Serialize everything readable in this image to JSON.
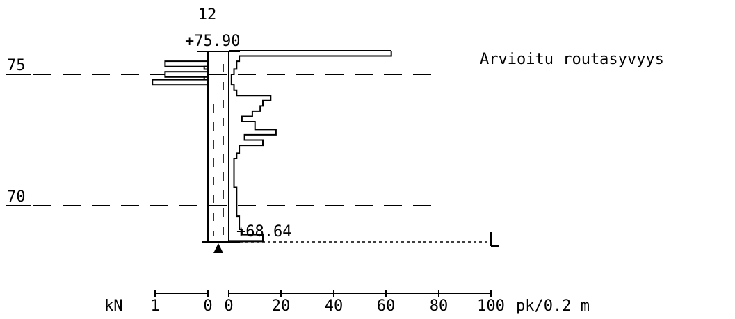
{
  "point_id": "12",
  "top_label": "+75.90",
  "bottom_label": "+68.64",
  "frost_label": "Arvioitu routasyvyys",
  "axis": {
    "kn_label": "kN",
    "kn_ticks": [
      "1",
      "0"
    ],
    "pk_ticks": [
      "0",
      "20",
      "40",
      "60",
      "80",
      "100"
    ],
    "pk_unit": "pk/0.2 m"
  },
  "elevation_lines": [
    {
      "label": "75",
      "elevation": 75
    },
    {
      "label": "70",
      "elevation": 70
    }
  ],
  "chart_data": {
    "type": "step",
    "top_elevation": 75.9,
    "bottom_elevation": 68.64,
    "pk_per_02m": [
      [
        75.9,
        75.7,
        62
      ],
      [
        75.7,
        75.5,
        4
      ],
      [
        75.5,
        75.2,
        3
      ],
      [
        75.2,
        75.0,
        2
      ],
      [
        75.0,
        74.6,
        1
      ],
      [
        74.6,
        74.4,
        2
      ],
      [
        74.4,
        74.2,
        3
      ],
      [
        74.2,
        74.0,
        16
      ],
      [
        74.0,
        73.8,
        13
      ],
      [
        73.8,
        73.6,
        12
      ],
      [
        73.6,
        73.4,
        9
      ],
      [
        73.4,
        73.2,
        5
      ],
      [
        73.2,
        72.9,
        10
      ],
      [
        72.9,
        72.7,
        18
      ],
      [
        72.7,
        72.5,
        6
      ],
      [
        72.5,
        72.3,
        13
      ],
      [
        72.3,
        72.0,
        4
      ],
      [
        72.0,
        71.8,
        3
      ],
      [
        71.8,
        71.5,
        2
      ],
      [
        71.5,
        70.7,
        2
      ],
      [
        70.7,
        70.1,
        3
      ],
      [
        70.1,
        69.6,
        3
      ],
      [
        69.6,
        69.1,
        4
      ],
      [
        69.1,
        68.9,
        5
      ],
      [
        68.9,
        68.64,
        13
      ]
    ],
    "kn_bars": [
      [
        75.5,
        75.3,
        0.81
      ],
      [
        75.3,
        75.2,
        0.07
      ],
      [
        75.1,
        74.9,
        0.81
      ],
      [
        74.9,
        74.8,
        0.07
      ],
      [
        74.8,
        74.6,
        1.05
      ]
    ]
  }
}
